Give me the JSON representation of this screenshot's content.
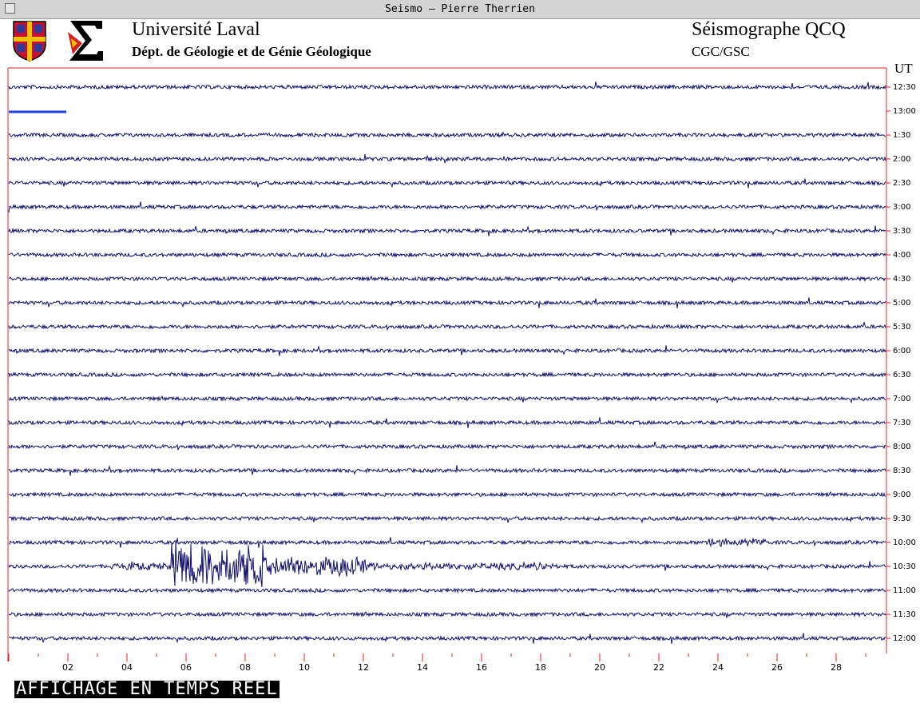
{
  "window": {
    "title": "Seismo – Pierre Therrien"
  },
  "header": {
    "institution": "Université Laval",
    "department": "Dépt. de Géologie et de Génie Géologique",
    "station": "Séismographe QCQ",
    "agency": "CGC/GSC"
  },
  "plot": {
    "time_zone": "UT",
    "row_labels": [
      "12:30",
      "13:00",
      "1:30",
      "2:00",
      "2:30",
      "3:00",
      "3:30",
      "4:00",
      "4:30",
      "5:00",
      "5:30",
      "6:00",
      "6:30",
      "7:00",
      "7:30",
      "8:00",
      "8:30",
      "9:00",
      "9:30",
      "10:00",
      "10:30",
      "11:00",
      "11:30",
      "12:00"
    ],
    "minute_labels": [
      "02",
      "04",
      "06",
      "08",
      "10",
      "12",
      "14",
      "16",
      "18",
      "20",
      "22",
      "24",
      "26",
      "28"
    ]
  },
  "footer": {
    "status": "AFFICHAGE EN TEMPS REEL"
  }
}
